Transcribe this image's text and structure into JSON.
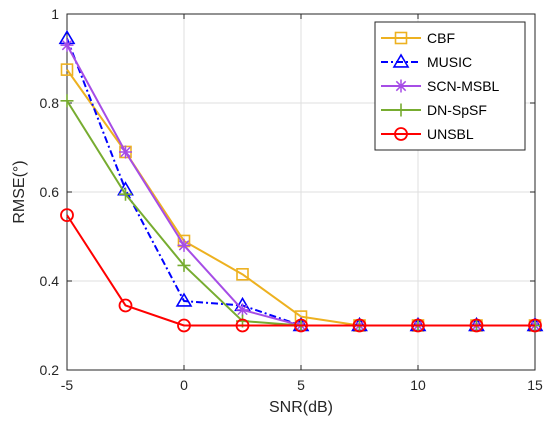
{
  "chart_data": {
    "type": "line",
    "xlabel": "SNR(dB)",
    "ylabel": "RMSE(°)",
    "xlim": [
      -5,
      15
    ],
    "ylim": [
      0.2,
      1.0
    ],
    "xticks": [
      -5,
      0,
      5,
      10,
      15
    ],
    "yticks": [
      0.2,
      0.4,
      0.6,
      0.8,
      1.0
    ],
    "ytick_labels": [
      "0.2",
      "0.4",
      "0.6",
      "0.8",
      "1"
    ],
    "grid": true,
    "legend_position": "top-right",
    "x": [
      -5,
      -2.5,
      0,
      2.5,
      5,
      7.5,
      10,
      12.5,
      15
    ],
    "series": [
      {
        "name": "CBF",
        "color": "#EDB120",
        "marker": "square",
        "dash": "solid",
        "values": [
          0.875,
          0.69,
          0.49,
          0.415,
          0.32,
          0.3,
          0.3,
          0.3,
          0.3
        ]
      },
      {
        "name": "MUSIC",
        "color": "#0000FF",
        "marker": "triangle",
        "dash": "dashdot",
        "values": [
          0.945,
          0.605,
          0.355,
          0.345,
          0.3,
          0.3,
          0.3,
          0.3,
          0.3
        ]
      },
      {
        "name": "SCN-MSBL",
        "color": "#A64DE6",
        "marker": "asterisk",
        "dash": "solid",
        "values": [
          0.93,
          0.69,
          0.48,
          0.335,
          0.3,
          0.3,
          0.3,
          0.3,
          0.3
        ]
      },
      {
        "name": "DN-SpSF",
        "color": "#77AC30",
        "marker": "plus",
        "dash": "solid",
        "values": [
          0.805,
          0.595,
          0.435,
          0.31,
          0.3,
          0.3,
          0.3,
          0.3,
          0.3
        ]
      },
      {
        "name": "UNSBL",
        "color": "#FF0000",
        "marker": "circle",
        "dash": "solid",
        "values": [
          0.548,
          0.345,
          0.3,
          0.3,
          0.3,
          0.3,
          0.3,
          0.3,
          0.3
        ]
      }
    ]
  }
}
